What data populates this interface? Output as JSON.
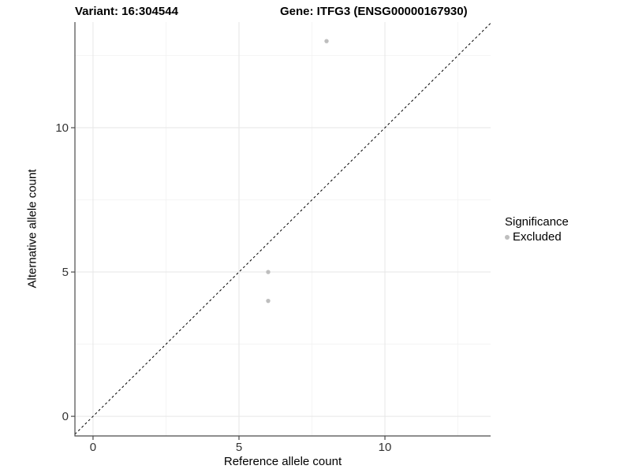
{
  "figure": {
    "title_left": "Variant: 16:304544",
    "title_right": "Gene: ITFG3 (ENSG00000167930)"
  },
  "chart_data": {
    "type": "scatter",
    "title": "Variant: 16:304544   Gene: ITFG3 (ENSG00000167930)",
    "xlabel": "Reference allele count",
    "ylabel": "Alternative allele count",
    "xlim": [
      -0.62,
      13.62
    ],
    "ylim": [
      -0.68,
      13.66
    ],
    "x_ticks": [
      0,
      5,
      10
    ],
    "y_ticks": [
      0,
      5,
      10
    ],
    "x_minor_ticks": [
      2.5,
      7.5,
      12.5
    ],
    "y_minor_ticks": [
      2.5,
      7.5,
      12.5
    ],
    "grid": true,
    "identity_line": {
      "slope": 1,
      "intercept": 0,
      "style": "dashed",
      "color": "#000000"
    },
    "series": [
      {
        "name": "Excluded",
        "color": "#bebebe",
        "points": [
          {
            "x": 8,
            "y": 13
          },
          {
            "x": 6,
            "y": 5
          },
          {
            "x": 6,
            "y": 4
          }
        ]
      }
    ],
    "legend": {
      "title": "Significance",
      "position": "right",
      "items": [
        {
          "label": "Excluded",
          "color": "#bebebe",
          "marker": "point-icon"
        }
      ]
    },
    "colors": {
      "axis_line": "#4a4a4a",
      "tick_label": "#333333",
      "grid_major": "#e6e6e6",
      "grid_minor": "#f2f2f2",
      "background": "#ffffff"
    }
  }
}
